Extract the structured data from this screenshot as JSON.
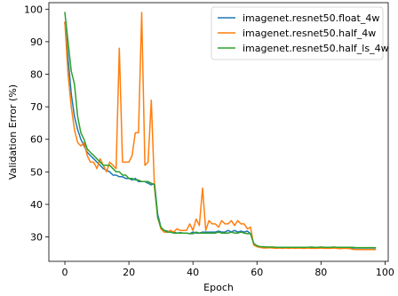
{
  "chart_data": {
    "type": "line",
    "title": "",
    "xlabel": "Epoch",
    "ylabel": "Validation Error (%)",
    "xlim": [
      -5,
      101
    ],
    "ylim": [
      22.5,
      102
    ],
    "xticks": [
      0,
      20,
      40,
      60,
      80,
      100
    ],
    "yticks": [
      30,
      40,
      50,
      60,
      70,
      80,
      90,
      100
    ],
    "grid": false,
    "legend_position": "top-right",
    "series": [
      {
        "name": "imagenet.resnet50.float_4w",
        "color": "#1f77b4",
        "x": [
          0,
          1,
          2,
          3,
          4,
          5,
          6,
          7,
          8,
          9,
          10,
          11,
          12,
          13,
          14,
          15,
          16,
          17,
          18,
          19,
          20,
          21,
          22,
          23,
          24,
          25,
          26,
          27,
          28,
          29,
          30,
          31,
          32,
          33,
          34,
          35,
          36,
          37,
          38,
          39,
          40,
          41,
          42,
          43,
          44,
          45,
          46,
          47,
          48,
          49,
          50,
          51,
          52,
          53,
          54,
          55,
          56,
          57,
          58,
          59,
          60,
          61,
          62,
          63,
          64,
          65,
          66,
          67,
          68,
          69,
          70,
          71,
          72,
          73,
          74,
          75,
          76,
          77,
          78,
          79,
          80,
          81,
          82,
          83,
          84,
          85,
          86,
          87,
          88,
          89,
          90,
          91,
          92,
          93,
          94,
          95,
          96,
          97
        ],
        "y": [
          96,
          85,
          74,
          67,
          63,
          60,
          58,
          56,
          55,
          54,
          53,
          52,
          51,
          50.5,
          50,
          49,
          49,
          48.5,
          48.5,
          48,
          48,
          47.5,
          48,
          47,
          47,
          47,
          46.5,
          46,
          46.5,
          37,
          33,
          32,
          31.8,
          31.5,
          31.5,
          31.2,
          31.3,
          31.2,
          31.2,
          31,
          31.5,
          31.2,
          31.2,
          31.5,
          31.5,
          31.5,
          31.5,
          31.5,
          31.8,
          31.5,
          31.5,
          32,
          31.5,
          32,
          31.5,
          31.8,
          31.5,
          31.8,
          31,
          28,
          27,
          26.9,
          26.8,
          26.8,
          26.8,
          26.7,
          26.7,
          26.7,
          26.8,
          26.7,
          26.7,
          26.8,
          26.7,
          26.8,
          26.7,
          26.7,
          26.7,
          26.8,
          26.7,
          26.8,
          26.7,
          26.8,
          26.7,
          26.7,
          26.8,
          26.7,
          26.7,
          26.7,
          26.8,
          26.7,
          26.6,
          26.6,
          26.6,
          26.6,
          26.6,
          26.6,
          26.6,
          26.6
        ]
      },
      {
        "name": "imagenet.resnet50.half_4w",
        "color": "#ff7f0e",
        "x": [
          0,
          1,
          2,
          3,
          4,
          5,
          6,
          7,
          8,
          9,
          10,
          11,
          12,
          13,
          14,
          15,
          16,
          17,
          18,
          19,
          20,
          21,
          22,
          23,
          24,
          25,
          26,
          27,
          28,
          29,
          30,
          31,
          32,
          33,
          34,
          35,
          36,
          37,
          38,
          39,
          40,
          41,
          42,
          43,
          44,
          45,
          46,
          47,
          48,
          49,
          50,
          51,
          52,
          53,
          54,
          55,
          56,
          57,
          58,
          59,
          60,
          61,
          62,
          63,
          64,
          65,
          66,
          67,
          68,
          69,
          70,
          71,
          72,
          73,
          74,
          75,
          76,
          77,
          78,
          79,
          80,
          81,
          82,
          83,
          84,
          85,
          86,
          87,
          88,
          89,
          90,
          91,
          92,
          93,
          94,
          95,
          96,
          97
        ],
        "y": [
          96,
          80,
          70,
          63,
          59,
          58,
          59,
          55,
          53,
          53,
          51,
          54,
          52,
          50,
          53,
          52,
          51,
          88,
          53,
          53,
          53,
          55,
          62,
          62,
          99,
          52,
          53,
          72,
          45,
          36,
          32.5,
          31.5,
          31.5,
          32,
          31.5,
          32.5,
          32,
          32,
          32,
          34,
          32,
          35.5,
          33.5,
          45,
          32,
          35,
          34,
          34,
          33,
          35,
          34,
          34,
          35,
          33.5,
          35,
          34,
          34,
          32.5,
          33,
          27.5,
          27,
          26.8,
          26.6,
          26.6,
          26.7,
          26.6,
          26.5,
          26.6,
          26.5,
          26.6,
          26.5,
          26.6,
          26.5,
          26.6,
          26.5,
          26.5,
          26.6,
          26.5,
          26.5,
          26.5,
          26.6,
          26.5,
          26.5,
          26.5,
          26.6,
          26.5,
          26.4,
          26.5,
          26.5,
          26.4,
          26.2,
          26.1,
          26.1,
          26.1,
          26.1,
          26.1,
          26.1,
          26.1
        ]
      },
      {
        "name": "imagenet.resnet50.half_ls_4w",
        "color": "#2ca02c",
        "x": [
          0,
          1,
          2,
          3,
          4,
          5,
          6,
          7,
          8,
          9,
          10,
          11,
          12,
          13,
          14,
          15,
          16,
          17,
          18,
          19,
          20,
          21,
          22,
          23,
          24,
          25,
          26,
          27,
          28,
          29,
          30,
          31,
          32,
          33,
          34,
          35,
          36,
          37,
          38,
          39,
          40,
          41,
          42,
          43,
          44,
          45,
          46,
          47,
          48,
          49,
          50,
          51,
          52,
          53,
          54,
          55,
          56,
          57,
          58,
          59,
          60,
          61,
          62,
          63,
          64,
          65,
          66,
          67,
          68,
          69,
          70,
          71,
          72,
          73,
          74,
          75,
          76,
          77,
          78,
          79,
          80,
          81,
          82,
          83,
          84,
          85,
          86,
          87,
          88,
          89,
          90,
          91,
          92,
          93,
          94,
          95,
          96,
          97
        ],
        "y": [
          99,
          90,
          81,
          77,
          67,
          62,
          60,
          57,
          56,
          55,
          54,
          53,
          52,
          52,
          52,
          51,
          50,
          50,
          49,
          49,
          48,
          48,
          47.5,
          47.5,
          47,
          47,
          47,
          46.5,
          46,
          36,
          33,
          32,
          31.5,
          31.5,
          31.2,
          31.2,
          31.2,
          31.2,
          31.2,
          31,
          31,
          31.5,
          31.2,
          31.2,
          31.2,
          31.2,
          31.2,
          31.2,
          31.5,
          31.2,
          31.2,
          31.2,
          31.5,
          31.2,
          31.2,
          31.5,
          31.2,
          31,
          31,
          28,
          27.3,
          27,
          27,
          26.9,
          26.9,
          26.9,
          26.8,
          26.8,
          26.8,
          26.8,
          26.8,
          26.8,
          26.8,
          26.8,
          26.8,
          26.8,
          26.8,
          26.9,
          26.8,
          26.8,
          26.9,
          26.8,
          26.8,
          26.8,
          26.9,
          26.8,
          26.8,
          26.8,
          26.8,
          26.8,
          26.8,
          26.7,
          26.7,
          26.7,
          26.7,
          26.7,
          26.7,
          26.7
        ]
      }
    ]
  }
}
